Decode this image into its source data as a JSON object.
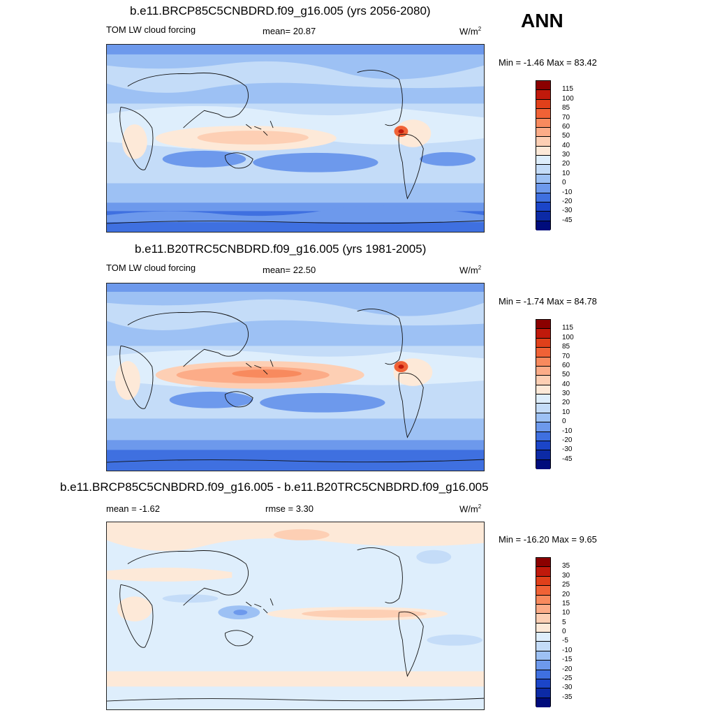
{
  "season": "ANN",
  "units_base": "W/m",
  "units_exp": "2",
  "panels": [
    {
      "title": "b.e11.BRCP85C5CNBDRD.f09_g16.005 (yrs 2056-2080)",
      "variable": "TOM LW cloud forcing",
      "stat": "mean=  20.87",
      "minmax": "Min =  -1.46 Max =  83.42",
      "colorbar": {
        "labels": [
          "115",
          "100",
          "85",
          "70",
          "60",
          "50",
          "40",
          "30",
          "20",
          "10",
          "0",
          "-10",
          "-20",
          "-30",
          "-45"
        ],
        "colors": [
          "#8b0000",
          "#c0190b",
          "#e0401a",
          "#f06236",
          "#f88a5e",
          "#fcac88",
          "#fdcfb4",
          "#fde9d8",
          "#deeefc",
          "#c4dcf8",
          "#9dc1f4",
          "#6d99ec",
          "#3f70e0",
          "#1b45c8",
          "#0c2aa5",
          "#000c7c"
        ]
      }
    },
    {
      "title": "b.e11.B20TRC5CNBDRD.f09_g16.005 (yrs 1981-2005)",
      "variable": "TOM LW cloud forcing",
      "stat": "mean=  22.50",
      "minmax": "Min =  -1.74 Max =  84.78",
      "colorbar": {
        "labels": [
          "115",
          "100",
          "85",
          "70",
          "60",
          "50",
          "40",
          "30",
          "20",
          "10",
          "0",
          "-10",
          "-20",
          "-30",
          "-45"
        ],
        "colors": [
          "#8b0000",
          "#c0190b",
          "#e0401a",
          "#f06236",
          "#f88a5e",
          "#fcac88",
          "#fdcfb4",
          "#fde9d8",
          "#deeefc",
          "#c4dcf8",
          "#9dc1f4",
          "#6d99ec",
          "#3f70e0",
          "#1b45c8",
          "#0c2aa5",
          "#000c7c"
        ]
      }
    },
    {
      "title": "b.e11.BRCP85C5CNBDRD.f09_g16.005 - b.e11.B20TRC5CNBDRD.f09_g16.005",
      "stat": "mean =  -1.62",
      "rmse": "rmse =   3.30",
      "minmax": "Min = -16.20 Max =   9.65",
      "colorbar": {
        "labels": [
          "35",
          "30",
          "25",
          "20",
          "15",
          "10",
          "5",
          "0",
          "-5",
          "-10",
          "-15",
          "-20",
          "-25",
          "-30",
          "-35"
        ],
        "colors": [
          "#8b0000",
          "#c0190b",
          "#e0401a",
          "#f06236",
          "#f88a5e",
          "#fcac88",
          "#fdcfb4",
          "#fde9d8",
          "#deeefc",
          "#c4dcf8",
          "#9dc1f4",
          "#6d99ec",
          "#3f70e0",
          "#1b45c8",
          "#0c2aa5",
          "#000c7c"
        ]
      }
    }
  ]
}
